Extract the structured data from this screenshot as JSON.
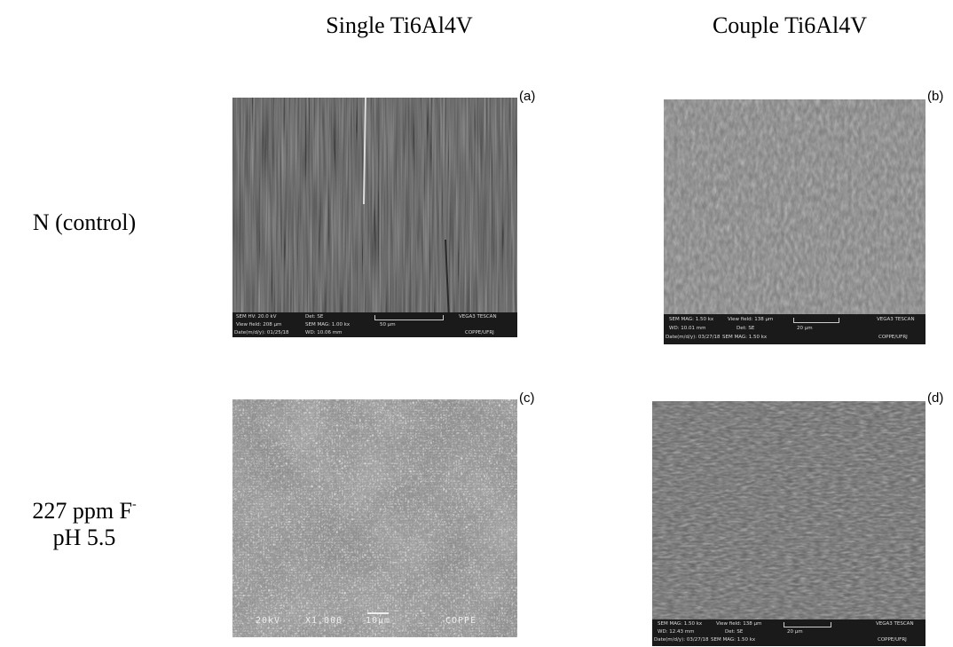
{
  "column_headers": [
    "Single Ti6Al4V",
    "Couple Ti6Al4V"
  ],
  "row_labels": [
    {
      "lines": [
        "N (control)"
      ]
    },
    {
      "lines": [
        "227 ppm F",
        "pH 5.5"
      ],
      "superscript": "-"
    }
  ],
  "panels": [
    {
      "label": "(a)",
      "info": [
        "SEM HV: 20.0 kV",
        "Det: SE",
        "VEGA3 TESCAN",
        "View field: 208 µm",
        "SEM MAG: 1.00 kx",
        "50 µm",
        "Date(m/d/y): 01/25/18",
        "WD: 10.06 mm",
        "COPPE/UFRJ"
      ]
    },
    {
      "label": "(b)",
      "info": [
        "SEM MAG: 1.50 kx",
        "View field: 138 µm",
        "VEGA3 TESCAN",
        "WD: 10.01 mm",
        "Det: SE",
        "20 µm",
        "Date(m/d/y): 03/27/18",
        "SEM MAG: 1.50 kx",
        "COPPE/UFRJ"
      ]
    },
    {
      "label": "(c)",
      "info": [
        "20kV",
        "X1,000",
        "10µm",
        "COPPE"
      ]
    },
    {
      "label": "(d)",
      "info": [
        "SEM MAG: 1.50 kx",
        "View field: 138 µm",
        "VEGA3 TESCAN",
        "WD: 12.43 mm",
        "Det: SE",
        "20 µm",
        "Date(m/d/y): 03/27/18",
        "SEM MAG: 1.50 kx",
        "COPPE/UFRJ"
      ]
    }
  ]
}
